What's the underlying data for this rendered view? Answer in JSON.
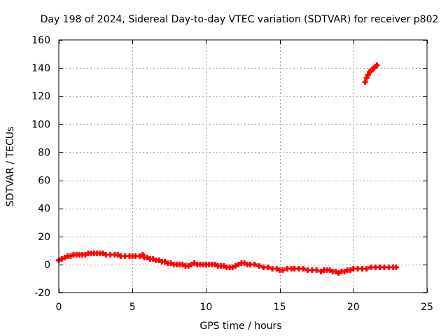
{
  "chart_data": {
    "type": "scatter",
    "title": "Day 198 of 2024, Sidereal Day-to-day VTEC variation (SDTVAR) for receiver p802",
    "xlabel": "GPS time / hours",
    "ylabel": "SDTVAR / TECUs",
    "xlim": [
      0,
      25
    ],
    "ylim": [
      -20,
      160
    ],
    "xticks": [
      0,
      5,
      10,
      15,
      20,
      25
    ],
    "yticks": [
      -20,
      0,
      20,
      40,
      60,
      80,
      100,
      120,
      140,
      160
    ],
    "grid": true,
    "marker": "plus",
    "series": [
      {
        "name": "SDTVAR",
        "color": "#ff0000",
        "x": [
          0.0,
          0.2,
          0.4,
          0.6,
          0.8,
          1.0,
          1.2,
          1.4,
          1.6,
          1.8,
          2.0,
          2.2,
          2.4,
          2.6,
          2.8,
          3.0,
          3.2,
          3.5,
          3.8,
          4.0,
          4.2,
          4.5,
          4.8,
          5.0,
          5.2,
          5.5,
          5.7,
          5.8,
          6.0,
          6.2,
          6.4,
          6.6,
          6.8,
          7.0,
          7.2,
          7.4,
          7.6,
          7.8,
          8.0,
          8.2,
          8.4,
          8.6,
          8.8,
          9.0,
          9.2,
          9.4,
          9.6,
          9.8,
          10.0,
          10.2,
          10.4,
          10.6,
          10.8,
          11.0,
          11.2,
          11.4,
          11.6,
          11.8,
          12.0,
          12.2,
          12.4,
          12.6,
          12.8,
          13.0,
          13.3,
          13.6,
          13.9,
          14.2,
          14.5,
          14.8,
          15.0,
          15.2,
          15.5,
          15.8,
          16.0,
          16.3,
          16.6,
          16.9,
          17.2,
          17.5,
          17.8,
          18.0,
          18.2,
          18.4,
          18.6,
          18.8,
          19.0,
          19.2,
          19.4,
          19.6,
          19.8,
          20.0,
          20.3,
          20.6,
          20.9,
          21.2,
          21.5,
          21.8,
          22.1,
          22.4,
          22.7,
          22.9,
          20.8,
          20.9,
          21.0,
          21.1,
          21.2,
          21.3,
          21.4,
          21.5,
          21.6
        ],
        "y": [
          3,
          4,
          5,
          6,
          6,
          7,
          7,
          7,
          7,
          7,
          8,
          8,
          8,
          8,
          8,
          8,
          7,
          7,
          7,
          7,
          6,
          6,
          6,
          6,
          6,
          6,
          7,
          5,
          5,
          4,
          4,
          3,
          3,
          2,
          2,
          1,
          1,
          0,
          0,
          0,
          0,
          -1,
          -1,
          0,
          1,
          0,
          0,
          0,
          0,
          0,
          0,
          0,
          -1,
          -1,
          -1,
          -2,
          -2,
          -2,
          -1,
          0,
          1,
          1,
          0,
          0,
          0,
          -1,
          -2,
          -2,
          -3,
          -3,
          -4,
          -4,
          -3,
          -3,
          -3,
          -3,
          -3,
          -4,
          -4,
          -4,
          -5,
          -4,
          -4,
          -4,
          -5,
          -5,
          -6,
          -5,
          -5,
          -4,
          -4,
          -3,
          -3,
          -3,
          -3,
          -2,
          -2,
          -2,
          -2,
          -2,
          -2,
          -2,
          130,
          133,
          135,
          137,
          138,
          139,
          140,
          141,
          142
        ]
      }
    ]
  }
}
